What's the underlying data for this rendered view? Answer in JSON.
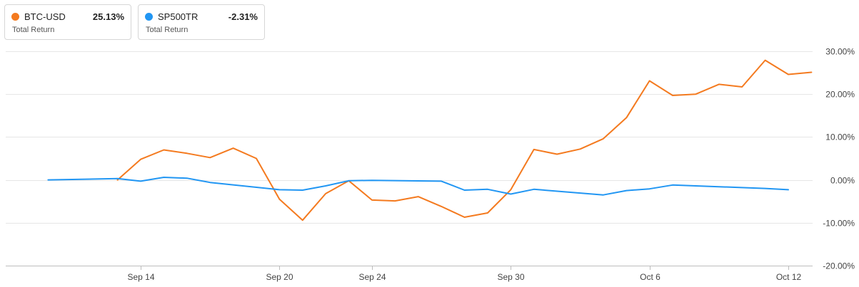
{
  "legend": [
    {
      "name": "BTC-USD",
      "value": "25.13%",
      "sub": "Total Return",
      "color": "#f47a1f"
    },
    {
      "name": "SP500TR",
      "value": "-2.31%",
      "sub": "Total Return",
      "color": "#2196f3"
    }
  ],
  "chart_data": {
    "type": "line",
    "x_ticks": [
      "Sep 14",
      "Sep 20",
      "Sep 24",
      "Sep 30",
      "Oct 6",
      "Oct 12"
    ],
    "y_ticks": [
      "30.00%",
      "20.00%",
      "10.00%",
      "0.00%",
      "-10.00%",
      "-20.00%"
    ],
    "ylim": [
      -20,
      30
    ],
    "grid": true,
    "series": [
      {
        "name": "BTC-USD",
        "color": "#f47a1f",
        "points": [
          [
            "Sep 13",
            0.0
          ],
          [
            "Sep 14",
            4.8
          ],
          [
            "Sep 15",
            7.0
          ],
          [
            "Sep 16",
            6.2
          ],
          [
            "Sep 17",
            5.2
          ],
          [
            "Sep 18",
            7.4
          ],
          [
            "Sep 19",
            5.0
          ],
          [
            "Sep 20",
            -4.5
          ],
          [
            "Sep 21",
            -9.4
          ],
          [
            "Sep 22",
            -3.2
          ],
          [
            "Sep 23",
            -0.2
          ],
          [
            "Sep 24",
            -4.7
          ],
          [
            "Sep 25",
            -4.9
          ],
          [
            "Sep 26",
            -3.9
          ],
          [
            "Sep 27",
            -6.2
          ],
          [
            "Sep 28",
            -8.7
          ],
          [
            "Sep 29",
            -7.7
          ],
          [
            "Sep 30",
            -2.3
          ],
          [
            "Oct 1",
            7.1
          ],
          [
            "Oct 2",
            6.0
          ],
          [
            "Oct 3",
            7.2
          ],
          [
            "Oct 4",
            9.6
          ],
          [
            "Oct 5",
            14.5
          ],
          [
            "Oct 6",
            23.1
          ],
          [
            "Oct 7",
            19.7
          ],
          [
            "Oct 8",
            20.0
          ],
          [
            "Oct 9",
            22.3
          ],
          [
            "Oct 10",
            21.7
          ],
          [
            "Oct 11",
            27.9
          ],
          [
            "Oct 12",
            24.6
          ],
          [
            "Oct 13",
            25.1
          ]
        ]
      },
      {
        "name": "SP500TR",
        "color": "#2196f3",
        "points": [
          [
            "Sep 10",
            0.0
          ],
          [
            "Sep 13",
            0.3
          ],
          [
            "Sep 14",
            -0.3
          ],
          [
            "Sep 15",
            0.6
          ],
          [
            "Sep 16",
            0.4
          ],
          [
            "Sep 17",
            -0.6
          ],
          [
            "Sep 20",
            -2.3
          ],
          [
            "Sep 21",
            -2.4
          ],
          [
            "Sep 22",
            -1.4
          ],
          [
            "Sep 23",
            -0.2
          ],
          [
            "Sep 24",
            -0.1
          ],
          [
            "Sep 27",
            -0.3
          ],
          [
            "Sep 28",
            -2.4
          ],
          [
            "Sep 29",
            -2.2
          ],
          [
            "Sep 30",
            -3.3
          ],
          [
            "Oct 1",
            -2.2
          ],
          [
            "Oct 4",
            -3.5
          ],
          [
            "Oct 5",
            -2.5
          ],
          [
            "Oct 6",
            -2.1
          ],
          [
            "Oct 7",
            -1.2
          ],
          [
            "Oct 8",
            -1.4
          ],
          [
            "Oct 11",
            -2.0
          ],
          [
            "Oct 12",
            -2.3
          ]
        ]
      }
    ]
  }
}
